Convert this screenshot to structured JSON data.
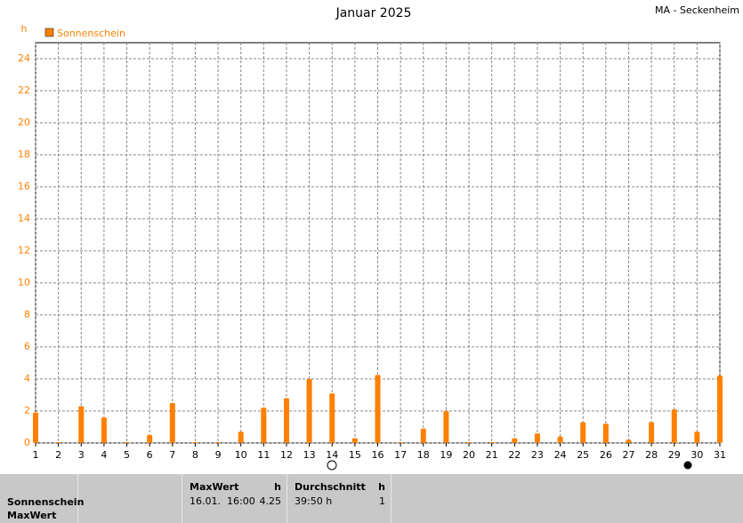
{
  "chart_data": {
    "type": "bar",
    "title": "Januar 2025",
    "station": "MA - Seckenheim",
    "ylabel": "h",
    "legend_position": "top-left",
    "grid": true,
    "x": [
      1,
      2,
      3,
      4,
      5,
      6,
      7,
      8,
      9,
      10,
      11,
      12,
      13,
      14,
      15,
      16,
      17,
      18,
      19,
      20,
      21,
      22,
      23,
      24,
      25,
      26,
      27,
      28,
      29,
      30,
      31
    ],
    "xlim": [
      1,
      31
    ],
    "xticks": [
      1,
      2,
      3,
      4,
      5,
      6,
      7,
      8,
      9,
      10,
      11,
      12,
      13,
      14,
      15,
      16,
      17,
      18,
      19,
      20,
      21,
      22,
      23,
      24,
      25,
      26,
      27,
      28,
      29,
      30,
      31
    ],
    "ylim": [
      0,
      25
    ],
    "yticks": [
      0,
      2,
      4,
      6,
      8,
      10,
      12,
      14,
      16,
      18,
      20,
      22,
      24
    ],
    "series": [
      {
        "name": "Sonnenschein",
        "color": "#ff8000",
        "values": [
          1.9,
          0.05,
          2.3,
          1.6,
          0.05,
          0.5,
          2.5,
          0.05,
          0.05,
          0.7,
          2.2,
          2.8,
          4.0,
          3.1,
          0.3,
          4.25,
          0.05,
          0.9,
          2.0,
          0.05,
          0.05,
          0.3,
          0.6,
          0.4,
          1.3,
          1.2,
          0.2,
          1.3,
          2.1,
          0.7,
          4.2
        ]
      }
    ]
  },
  "stats": {
    "row_labels": [
      "Sonnenschein",
      "MaxWert"
    ],
    "max": {
      "title": "MaxWert",
      "unit": "h",
      "date": "16.01.",
      "time": "16:00",
      "value": 4.25
    },
    "avg": {
      "title": "Durchschnitt",
      "unit": "h",
      "value": "39:50 h",
      "count": 1
    }
  }
}
